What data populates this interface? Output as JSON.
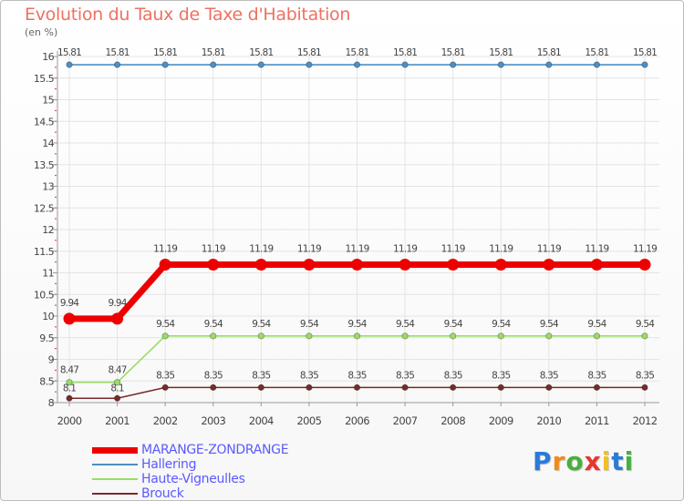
{
  "header": {
    "title": "Evolution du Taux de Taxe d'Habitation",
    "unit": "(en %)"
  },
  "chart_data": {
    "type": "line",
    "title": "Evolution du Taux de Taxe d'Habitation",
    "ylabel": "(en %)",
    "xlabel": "",
    "ylim": [
      8,
      16
    ],
    "yticks": [
      "8",
      "8.5",
      "9",
      "9.5",
      "10",
      "10.5",
      "11",
      "11.5",
      "12",
      "12.5",
      "13",
      "13.5",
      "14",
      "14.5",
      "15",
      "15.5",
      "16"
    ],
    "categories": [
      "2000",
      "2001",
      "2002",
      "2003",
      "2004",
      "2005",
      "2006",
      "2007",
      "2008",
      "2009",
      "2010",
      "2011",
      "2012"
    ],
    "series": [
      {
        "name": "MARANGE-ZONDRANGE",
        "color": "#ee0000",
        "values": [
          9.94,
          9.94,
          11.19,
          11.19,
          11.19,
          11.19,
          11.19,
          11.19,
          11.19,
          11.19,
          11.19,
          11.19,
          11.19
        ],
        "labels": [
          "9.94",
          "9.94",
          "11.19",
          "11.19",
          "11.19",
          "11.19",
          "11.19",
          "11.19",
          "11.19",
          "11.19",
          "11.19",
          "11.19",
          "11.19"
        ]
      },
      {
        "name": "Hallering",
        "color": "#4d8fc4",
        "values": [
          15.81,
          15.81,
          15.81,
          15.81,
          15.81,
          15.81,
          15.81,
          15.81,
          15.81,
          15.81,
          15.81,
          15.81,
          15.81
        ],
        "labels": [
          "15.81",
          "15.81",
          "15.81",
          "15.81",
          "15.81",
          "15.81",
          "15.81",
          "15.81",
          "15.81",
          "15.81",
          "15.81",
          "15.81",
          "15.81"
        ]
      },
      {
        "name": "Haute-Vigneulles",
        "color": "#99dd66",
        "values": [
          8.47,
          8.47,
          9.54,
          9.54,
          9.54,
          9.54,
          9.54,
          9.54,
          9.54,
          9.54,
          9.54,
          9.54,
          9.54
        ],
        "labels": [
          "8.47",
          "8.47",
          "9.54",
          "9.54",
          "9.54",
          "9.54",
          "9.54",
          "9.54",
          "9.54",
          "9.54",
          "9.54",
          "9.54",
          "9.54"
        ]
      },
      {
        "name": "Brouck",
        "color": "#7a2a2a",
        "values": [
          8.1,
          8.1,
          8.35,
          8.35,
          8.35,
          8.35,
          8.35,
          8.35,
          8.35,
          8.35,
          8.35,
          8.35,
          8.35
        ],
        "labels": [
          "8.1",
          "8.1",
          "8.35",
          "8.35",
          "8.35",
          "8.35",
          "8.35",
          "8.35",
          "8.35",
          "8.35",
          "8.35",
          "8.35",
          "8.35"
        ]
      }
    ],
    "legend": "bottom-left"
  },
  "logo": {
    "letters": [
      "P",
      "r",
      "o",
      "x",
      "i",
      "t",
      "i"
    ],
    "colors": [
      "#2a7bd8",
      "#f08a1c",
      "#47b03c",
      "#e8352d",
      "#f0c020",
      "#2a7bd8",
      "#47b03c"
    ]
  }
}
